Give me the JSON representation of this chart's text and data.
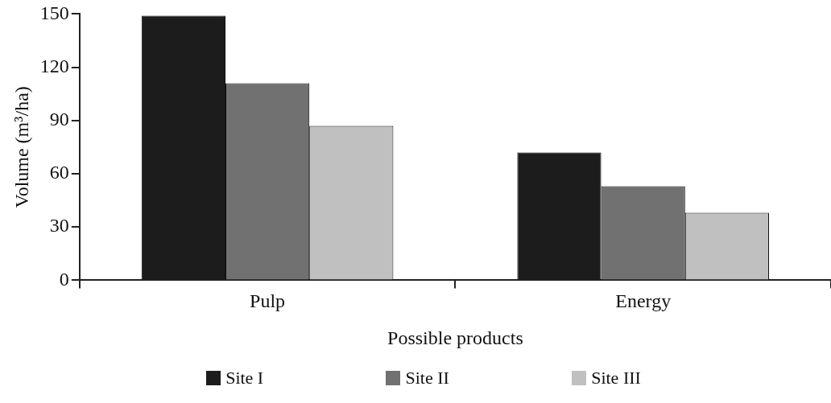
{
  "chart_data": {
    "type": "bar",
    "xlabel": "Possible products",
    "ylabel": "Volume (m³/ha)",
    "categories": [
      "Pulp",
      "Energy"
    ],
    "series": [
      {
        "name": "Site I",
        "color": "#1c1c1c",
        "values": [
          149,
          72
        ]
      },
      {
        "name": "Site II",
        "color": "#717171",
        "values": [
          111,
          53
        ]
      },
      {
        "name": "Site III",
        "color": "#c0c0c0",
        "values": [
          87,
          38
        ]
      }
    ],
    "ylim": [
      0,
      150
    ],
    "yticks": [
      0,
      30,
      60,
      90,
      120,
      150
    ],
    "grid": false,
    "legend": "bottom"
  }
}
